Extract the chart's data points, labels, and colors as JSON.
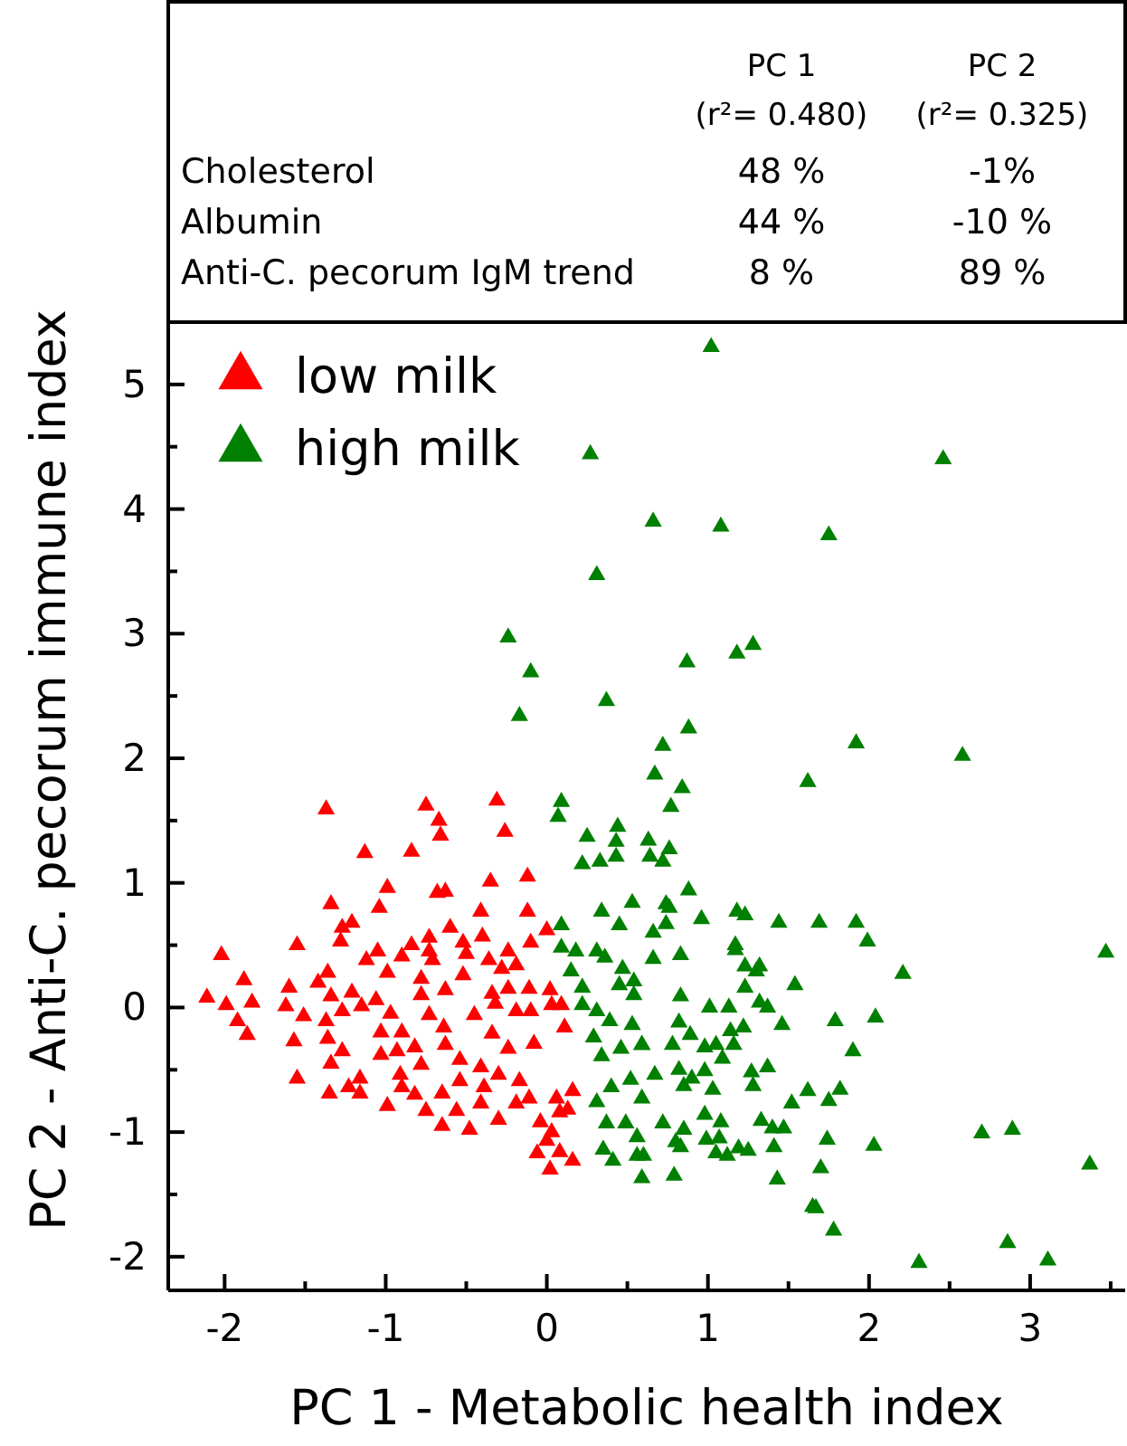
{
  "chart_data": {
    "type": "scatter",
    "xlabel": "PC 1 - Metabolic health index",
    "ylabel": "PC 2 - Anti-C. pecorum immune index",
    "annotations": [
      "PC 1",
      "PC 2",
      "(r²= 0.480)",
      "(r²= 0.325)",
      "Cholesterol",
      "48 %",
      "-1%",
      "Albumin",
      "44 %",
      "-10 %",
      "Anti-C. pecorum IgM trend",
      "8 %",
      "89 %"
    ],
    "xlim": [
      -2.35,
      3.59
    ],
    "ylim": [
      -2.27,
      5.5
    ],
    "xticks": [
      -2,
      {
        "value": -1.5,
        "label": null
      },
      -1,
      {
        "value": -0.5,
        "label": null
      },
      0,
      {
        "value": 0.5,
        "label": null
      },
      1,
      {
        "value": 1.5,
        "label": null
      },
      2,
      {
        "value": 2.5,
        "label": null
      },
      3,
      {
        "value": 3.5,
        "label": null
      }
    ],
    "yticks": [
      -2,
      {
        "value": -1.5,
        "label": null
      },
      -1,
      {
        "value": -0.5,
        "label": null
      },
      0,
      {
        "value": 0.5,
        "label": null
      },
      1,
      {
        "value": 1.5,
        "label": null
      },
      2,
      {
        "value": 2.5,
        "label": null
      },
      3,
      {
        "value": 3.5,
        "label": null
      },
      4,
      {
        "value": 4.5,
        "label": null
      },
      5
    ],
    "grid": false,
    "legend": "top left",
    "marker": "triangle",
    "series": [
      {
        "name": "low milk",
        "color": "#ff0000",
        "x": [
          -1.37,
          -0.75,
          -0.67,
          -0.66,
          -0.31,
          -0.26,
          -1.13,
          -0.84,
          -0.12,
          -0.35,
          -0.99,
          -0.68,
          -0.63,
          -1.04,
          -1.34,
          -1.27,
          -1.21,
          -1.28,
          -1.55,
          -2.02,
          -1.88,
          -2.11,
          -1.99,
          -1.83,
          -1.92,
          -1.86,
          -1.6,
          -1.62,
          -1.51,
          -1.57,
          -1.55,
          -1.42,
          -1.36,
          -1.34,
          -1.27,
          -1.37,
          -1.36,
          -1.27,
          -1.34,
          -1.35,
          -1.23,
          -1.16,
          -1.16,
          -1.21,
          -1.15,
          -1.12,
          -1.05,
          -0.99,
          -1.06,
          -0.97,
          -1.03,
          -1.03,
          -0.93,
          -0.99,
          -0.9,
          -0.91,
          -0.9,
          -0.84,
          -0.9,
          -0.78,
          -0.78,
          -0.73,
          -0.73,
          -0.71,
          -0.82,
          -0.78,
          -0.82,
          -0.75,
          -0.73,
          -0.63,
          -0.64,
          -0.63,
          -0.6,
          -0.65,
          -0.65,
          -0.52,
          -0.52,
          -0.5,
          -0.54,
          -0.54,
          -0.56,
          -0.48,
          -0.45,
          -0.41,
          -0.4,
          -0.36,
          -0.34,
          -0.32,
          -0.34,
          -0.41,
          -0.39,
          -0.41,
          -0.3,
          -0.3,
          -0.28,
          -0.24,
          -0.24,
          -0.24,
          -0.19,
          -0.19,
          -0.17,
          -0.19,
          -0.12,
          -0.11,
          -0.1,
          -0.08,
          -0.1,
          -0.11,
          -0.04,
          -0.06,
          0.0,
          0.02,
          0.03,
          0.0,
          0.03,
          0.02,
          0.06,
          0.08,
          0.09,
          0.11,
          0.13,
          0.16,
          0.16,
          0.08
        ],
        "values": [
          1.59,
          1.62,
          1.5,
          1.38,
          1.66,
          1.41,
          1.24,
          1.25,
          1.05,
          1.01,
          0.96,
          0.92,
          0.93,
          0.8,
          0.83,
          0.64,
          0.68,
          0.53,
          0.5,
          0.42,
          0.22,
          0.08,
          0.02,
          0.04,
          -0.11,
          -0.22,
          0.16,
          0.01,
          -0.07,
          -0.27,
          -0.57,
          0.2,
          0.28,
          0.09,
          -0.03,
          -0.11,
          -0.25,
          -0.35,
          -0.45,
          -0.69,
          -0.64,
          -0.57,
          -0.69,
          0.12,
          0.01,
          0.38,
          0.45,
          0.28,
          0.06,
          -0.05,
          -0.2,
          -0.38,
          -0.35,
          -0.79,
          -0.2,
          -0.54,
          -0.64,
          0.5,
          0.41,
          0.23,
          0.1,
          0.45,
          0.56,
          0.38,
          -0.32,
          -0.46,
          -0.7,
          -0.83,
          -0.06,
          0.14,
          -0.16,
          -0.3,
          0.64,
          -0.69,
          -0.95,
          0.52,
          0.26,
          0.43,
          -0.42,
          -0.59,
          -0.83,
          -0.98,
          -0.06,
          0.77,
          0.57,
          0.38,
          0.11,
          0.03,
          -0.21,
          -0.48,
          -0.64,
          -0.77,
          -0.54,
          -0.9,
          0.31,
          0.45,
          0.15,
          -0.33,
          -0.03,
          0.34,
          -0.59,
          -0.77,
          0.77,
          0.15,
          0.52,
          -0.29,
          -0.03,
          -0.73,
          -0.92,
          -1.17,
          0.62,
          0.14,
          0.02,
          -1.07,
          -1.0,
          -1.3,
          -0.73,
          -1.16,
          0.02,
          -0.16,
          -0.82,
          -0.67,
          -1.23,
          -0.84
        ]
      },
      {
        "name": "high milk",
        "color": "#008000",
        "x": [
          0.27,
          0.31,
          -0.24,
          -0.1,
          -0.17,
          0.37,
          0.09,
          1.02,
          2.46,
          0.66,
          1.08,
          1.75,
          0.87,
          1.18,
          1.28,
          0.88,
          0.72,
          0.67,
          0.84,
          0.77,
          1.92,
          1.62,
          2.58,
          0.63,
          0.76,
          0.64,
          0.72,
          0.88,
          0.74,
          0.76,
          0.74,
          0.66,
          0.96,
          1.18,
          1.23,
          1.44,
          1.69,
          1.92,
          1.99,
          0.66,
          0.83,
          1.17,
          1.17,
          1.23,
          1.3,
          1.32,
          1.23,
          1.54,
          2.21,
          3.47,
          0.83,
          1.01,
          1.13,
          1.32,
          1.37,
          1.46,
          1.79,
          2.04,
          0.82,
          0.89,
          0.78,
          0.98,
          1.05,
          1.16,
          1.14,
          1.22,
          1.09,
          1.9,
          0.59,
          0.67,
          0.82,
          0.85,
          0.9,
          0.98,
          1.03,
          1.27,
          1.37,
          1.28,
          1.52,
          1.62,
          1.75,
          1.82,
          0.98,
          1.08,
          0.72,
          0.85,
          1.33,
          1.4,
          1.47,
          0.99,
          1.07,
          0.8,
          0.83,
          1.41,
          1.74,
          2.03,
          1.19,
          1.25,
          1.05,
          1.12,
          0.56,
          0.79,
          1.43,
          1.7,
          2.7,
          2.89,
          3.37,
          1.65,
          1.67,
          1.78,
          2.31,
          2.86,
          3.11,
          0.07,
          0.25,
          0.22,
          0.33,
          0.43,
          0.44,
          0.43,
          0.09,
          0.09,
          0.18,
          0.34,
          0.45,
          0.53,
          0.31,
          0.36,
          0.47,
          0.15,
          0.22,
          0.45,
          0.54,
          0.54,
          0.22,
          0.31,
          0.39,
          0.29,
          0.53,
          0.46,
          0.59,
          0.34,
          0.52,
          0.4,
          0.31,
          0.37,
          0.49,
          0.59,
          0.35,
          0.41,
          0.59,
          0.6,
          0.56
        ],
        "values": [
          4.44,
          3.47,
          2.97,
          2.69,
          2.34,
          2.46,
          1.65,
          5.3,
          4.4,
          3.9,
          3.86,
          3.79,
          2.77,
          2.84,
          2.91,
          2.24,
          2.1,
          1.87,
          1.76,
          1.61,
          2.12,
          1.81,
          2.02,
          1.34,
          1.27,
          1.21,
          1.17,
          0.94,
          0.83,
          0.8,
          0.67,
          0.6,
          0.71,
          0.77,
          0.74,
          0.68,
          0.68,
          0.68,
          0.53,
          0.39,
          0.42,
          0.5,
          0.46,
          0.33,
          0.29,
          0.33,
          0.16,
          0.18,
          0.27,
          0.44,
          0.09,
          0.0,
          0.0,
          0.04,
          0.0,
          -0.14,
          -0.11,
          -0.08,
          -0.12,
          -0.22,
          -0.3,
          -0.32,
          -0.3,
          -0.3,
          -0.19,
          -0.16,
          -0.41,
          -0.35,
          -0.3,
          -0.54,
          -0.5,
          -0.63,
          -0.57,
          -0.51,
          -0.66,
          -0.52,
          -0.48,
          -0.63,
          -0.77,
          -0.67,
          -0.75,
          -0.66,
          -0.86,
          -0.92,
          -0.93,
          -0.98,
          -0.91,
          -0.97,
          -0.97,
          -1.06,
          -1.05,
          -1.08,
          -1.12,
          -1.12,
          -1.06,
          -1.11,
          -1.13,
          -1.15,
          -1.17,
          -1.19,
          -1.19,
          -1.35,
          -1.38,
          -1.29,
          -1.01,
          -0.98,
          -1.26,
          -1.6,
          -1.61,
          -1.79,
          -2.05,
          -1.89,
          -2.03,
          1.53,
          1.37,
          1.15,
          1.17,
          1.33,
          1.45,
          1.21,
          0.66,
          0.48,
          0.45,
          0.77,
          0.66,
          0.84,
          0.45,
          0.4,
          0.31,
          0.29,
          0.16,
          0.18,
          0.21,
          0.1,
          0.02,
          -0.03,
          -0.11,
          -0.24,
          -0.14,
          -0.33,
          -0.3,
          -0.39,
          -0.58,
          -0.64,
          -0.76,
          -0.93,
          -0.93,
          -0.73,
          -1.14,
          -1.23,
          -1.37,
          -1.19,
          -1.04
        ]
      }
    ]
  }
}
